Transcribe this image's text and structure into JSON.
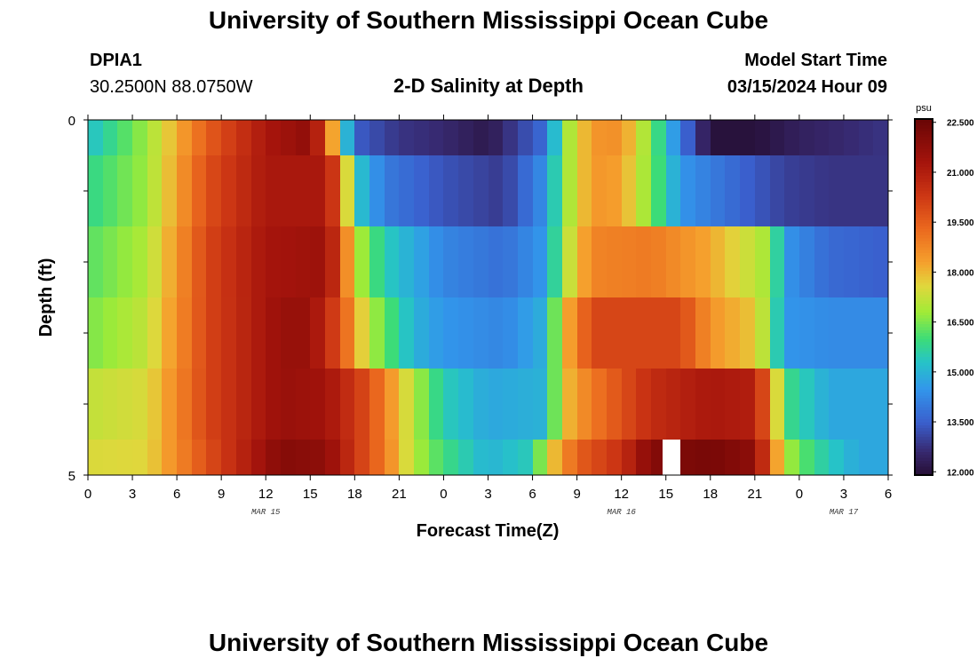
{
  "header": {
    "title": "University of Southern Mississippi Ocean Cube",
    "station_id": "DPIA1",
    "coordinates": "30.2500N  88.0750W",
    "plot_title": "2-D Salinity at Depth",
    "model_start_label": "Model Start Time",
    "model_start_value": "03/15/2024 Hour 09"
  },
  "footer": {
    "title": "University of Southern Mississippi Ocean Cube"
  },
  "chart_data": {
    "type": "heatmap",
    "title": "2-D Salinity at Depth",
    "xlabel": "Forecast Time(Z)",
    "ylabel": "Depth (ft)",
    "x_range_hours": [
      0,
      54
    ],
    "y_range": [
      0,
      5
    ],
    "y_tick_labels": [
      "0",
      "5"
    ],
    "x_tick_labels": [
      "0",
      "3",
      "6",
      "9",
      "12",
      "15",
      "18",
      "21",
      "0",
      "3",
      "6",
      "9",
      "12",
      "15",
      "18",
      "21",
      "0",
      "3",
      "6"
    ],
    "date_labels": [
      {
        "text": "MAR 15",
        "hour": 12
      },
      {
        "text": "MAR 16",
        "hour": 36
      },
      {
        "text": "MAR 17",
        "hour": 51
      }
    ],
    "depth_layers_ft": [
      0.25,
      1.0,
      2.0,
      3.0,
      4.0,
      4.75
    ],
    "layer_bounds_ft": [
      0,
      0.5,
      1.5,
      2.5,
      3.5,
      4.5,
      5.0
    ],
    "colorbar": {
      "unit": "psu",
      "min": 11.9,
      "max": 22.6,
      "tick_values": [
        12.0,
        13.5,
        15.0,
        16.5,
        18.0,
        19.5,
        21.0,
        22.5
      ],
      "tick_labels": [
        "12.000",
        "13.500",
        "15.000",
        "16.500",
        "18.000",
        "19.500",
        "21.000",
        "22.500"
      ]
    },
    "gap_hour": 39,
    "gap_layer": 5,
    "salinity_anchors": [
      [
        [
          0,
          15.2
        ],
        [
          4,
          16.8
        ],
        [
          8,
          19.5
        ],
        [
          12,
          21.2
        ],
        [
          15,
          21.8
        ],
        [
          16,
          20.0
        ],
        [
          17,
          16.5
        ],
        [
          18,
          13.5
        ],
        [
          21,
          12.8
        ],
        [
          24,
          12.6
        ],
        [
          27,
          12.2
        ],
        [
          31,
          13.8
        ],
        [
          32,
          16.5
        ],
        [
          34,
          18.5
        ],
        [
          36,
          18.6
        ],
        [
          38,
          16.5
        ],
        [
          40,
          14.0
        ],
        [
          42,
          12.0
        ],
        [
          45,
          12.0
        ],
        [
          48,
          12.4
        ],
        [
          51,
          12.6
        ],
        [
          54,
          12.8
        ]
      ],
      [
        [
          0,
          15.8
        ],
        [
          4,
          16.8
        ],
        [
          8,
          19.8
        ],
        [
          12,
          21.2
        ],
        [
          16,
          21.2
        ],
        [
          17,
          19.5
        ],
        [
          18,
          15.5
        ],
        [
          20,
          14.0
        ],
        [
          24,
          13.3
        ],
        [
          28,
          12.9
        ],
        [
          31,
          14.5
        ],
        [
          32,
          16.5
        ],
        [
          34,
          18.5
        ],
        [
          36,
          18.3
        ],
        [
          38,
          16.5
        ],
        [
          40,
          14.5
        ],
        [
          44,
          13.6
        ],
        [
          47,
          13.0
        ],
        [
          50,
          12.8
        ],
        [
          54,
          12.8
        ]
      ],
      [
        [
          0,
          16.2
        ],
        [
          4,
          17.0
        ],
        [
          8,
          20.0
        ],
        [
          12,
          21.3
        ],
        [
          16,
          21.5
        ],
        [
          17,
          20.0
        ],
        [
          18,
          17.2
        ],
        [
          20,
          15.5
        ],
        [
          24,
          14.2
        ],
        [
          28,
          13.8
        ],
        [
          31,
          14.6
        ],
        [
          32,
          16.8
        ],
        [
          34,
          18.8
        ],
        [
          38,
          19.0
        ],
        [
          42,
          18.2
        ],
        [
          46,
          16.8
        ],
        [
          47,
          14.5
        ],
        [
          50,
          13.7
        ],
        [
          54,
          13.5
        ]
      ],
      [
        [
          0,
          16.5
        ],
        [
          4,
          17.2
        ],
        [
          8,
          20.0
        ],
        [
          13,
          21.6
        ],
        [
          15,
          21.6
        ],
        [
          17,
          19.8
        ],
        [
          19,
          17.0
        ],
        [
          22,
          15.0
        ],
        [
          24,
          14.5
        ],
        [
          28,
          14.2
        ],
        [
          31,
          15.0
        ],
        [
          32,
          17.8
        ],
        [
          34,
          20.0
        ],
        [
          40,
          20.0
        ],
        [
          42,
          18.5
        ],
        [
          45,
          17.8
        ],
        [
          46,
          16.5
        ],
        [
          47,
          14.5
        ],
        [
          50,
          14.3
        ],
        [
          54,
          14.3
        ]
      ],
      [
        [
          0,
          17.2
        ],
        [
          4,
          17.5
        ],
        [
          8,
          20.0
        ],
        [
          13,
          21.6
        ],
        [
          16,
          21.4
        ],
        [
          19,
          19.8
        ],
        [
          22,
          17.0
        ],
        [
          24,
          15.5
        ],
        [
          27,
          14.8
        ],
        [
          31,
          15.0
        ],
        [
          32,
          17.8
        ],
        [
          34,
          19.0
        ],
        [
          38,
          20.6
        ],
        [
          42,
          21.2
        ],
        [
          45,
          21.0
        ],
        [
          46,
          19.0
        ],
        [
          47,
          16.0
        ],
        [
          50,
          14.8
        ],
        [
          54,
          14.8
        ]
      ],
      [
        [
          0,
          17.5
        ],
        [
          4,
          17.6
        ],
        [
          8,
          19.8
        ],
        [
          13,
          22.0
        ],
        [
          16,
          21.8
        ],
        [
          20,
          19.0
        ],
        [
          22,
          17.0
        ],
        [
          24,
          16.0
        ],
        [
          27,
          15.0
        ],
        [
          30,
          15.5
        ],
        [
          31,
          17.5
        ],
        [
          33,
          19.5
        ],
        [
          36,
          20.5
        ],
        [
          38,
          22.0
        ],
        [
          42,
          22.3
        ],
        [
          45,
          21.8
        ],
        [
          46,
          19.5
        ],
        [
          47,
          17.0
        ],
        [
          49,
          15.8
        ],
        [
          52,
          14.8
        ],
        [
          54,
          14.8
        ]
      ]
    ]
  }
}
